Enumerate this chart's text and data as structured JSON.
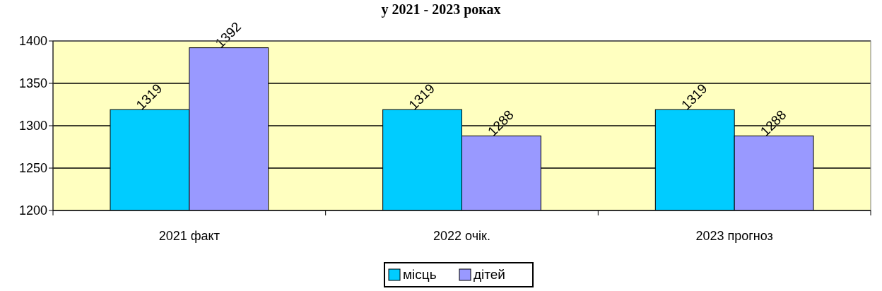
{
  "chart_data": {
    "type": "bar",
    "title": "у  2021 - 2023 роках",
    "categories": [
      "2021 факт",
      "2022 очік.",
      "2023 прогноз"
    ],
    "series": [
      {
        "name": "місць",
        "color": "#00ccff",
        "values": [
          1319,
          1319,
          1319
        ]
      },
      {
        "name": "дітей",
        "color": "#9999ff",
        "values": [
          1392,
          1288,
          1288
        ]
      }
    ],
    "ylim": [
      1200,
      1400
    ],
    "yticks": [
      1200,
      1250,
      1300,
      1350,
      1400
    ],
    "grid": "y",
    "legend": "bottom",
    "data_labels": true
  }
}
